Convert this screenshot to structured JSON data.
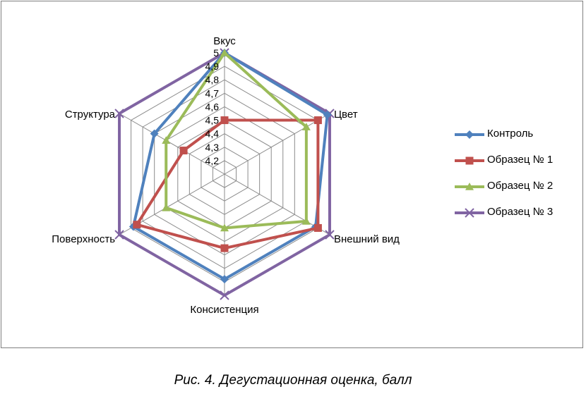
{
  "chart_data": {
    "type": "radar",
    "axes": [
      "Вкус",
      "Цвет",
      "Внешний вид",
      "Консистенция",
      "Поверхность",
      "Структура"
    ],
    "rlim": [
      4.1,
      5
    ],
    "ticks": [
      "5",
      "4,9",
      "4,8",
      "4,7",
      "4,6",
      "4,5",
      "4,4",
      "4,3",
      "4,2"
    ],
    "tick_values": [
      5,
      4.9,
      4.8,
      4.7,
      4.6,
      4.5,
      4.4,
      4.3,
      4.2
    ],
    "grid": true,
    "legend_position": "right",
    "series": [
      {
        "name": "Контроль",
        "values": [
          5.0,
          4.98,
          4.88,
          4.88,
          4.88,
          4.7
        ],
        "color": "#4f81bd",
        "marker": "diamond"
      },
      {
        "name": "Образец № 1",
        "values": [
          4.5,
          4.9,
          4.9,
          4.65,
          4.85,
          4.45
        ],
        "color": "#c0504d",
        "marker": "square"
      },
      {
        "name": "Образец № 2",
        "values": [
          5.0,
          4.8,
          4.8,
          4.5,
          4.6,
          4.6
        ],
        "color": "#9bbb59",
        "marker": "triangle"
      },
      {
        "name": "Образец № 3",
        "values": [
          5.0,
          5.0,
          5.0,
          5.0,
          5.0,
          5.0
        ],
        "color": "#8064a2",
        "marker": "x"
      }
    ]
  },
  "caption": "Рис. 4. Дегустационная оценка, балл"
}
